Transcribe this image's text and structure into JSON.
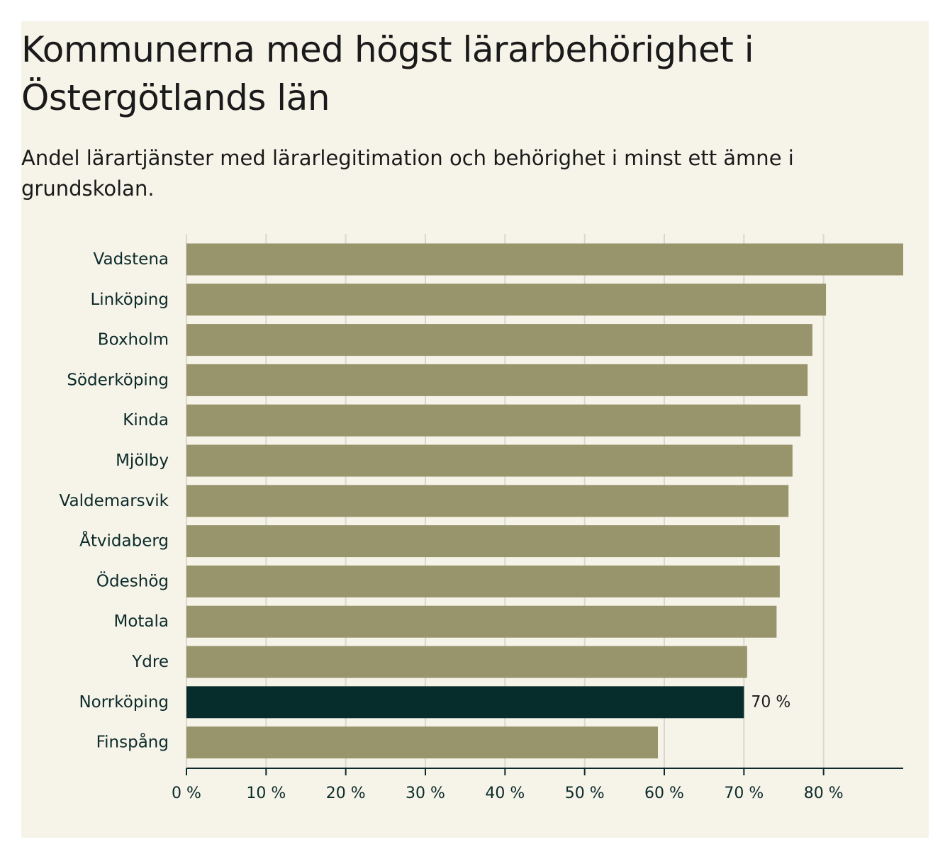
{
  "title": "Kommunerna med högst lärarbehörighet i Östergötlands län",
  "subtitle": "Andel lärartjänster med lärarlegitimation och behörighet i minst ett ämne i grundskolan.",
  "colors": {
    "background": "#f6f4e9",
    "bar": "#98946b",
    "highlight": "#062c2c",
    "grid": "#d9d7cf",
    "axis": "#0b2a2a"
  },
  "chart_data": {
    "type": "bar",
    "orientation": "horizontal",
    "title": "Kommunerna med högst lärarbehörighet i Östergötlands län",
    "subtitle": "Andel lärartjänster med lärarlegitimation och behörighet i minst ett ämne i grundskolan.",
    "categories": [
      "Vadstena",
      "Linköping",
      "Boxholm",
      "Söderköping",
      "Kinda",
      "Mjölby",
      "Valdemarsvik",
      "Åtvidaberg",
      "Ödeshög",
      "Motala",
      "Ydre",
      "Norrköping",
      "Finspång"
    ],
    "values": [
      90,
      80.3,
      78.6,
      78,
      77.1,
      76.1,
      75.6,
      74.5,
      74.5,
      74.1,
      70.4,
      70,
      59.2
    ],
    "highlight": "Norrköping",
    "data_labels": [
      {
        "category": "Norrköping",
        "text": "70 %"
      }
    ],
    "xlabel": "",
    "ylabel": "",
    "xlim": [
      0,
      90
    ],
    "ticks": [
      0,
      10,
      20,
      30,
      40,
      50,
      60,
      70,
      80
    ],
    "tick_labels": [
      "0 %",
      "10 %",
      "20 %",
      "30 %",
      "40 %",
      "50 %",
      "60 %",
      "70 %",
      "80 %"
    ],
    "grid": true
  }
}
